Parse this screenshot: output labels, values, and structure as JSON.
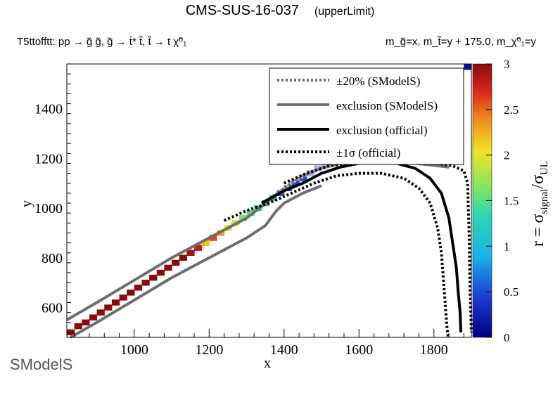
{
  "header": {
    "title": "CMS-SUS-16-037",
    "subtitle": "(upperLimit)",
    "process": "T5ttofftt: pp  → g̃ g̃, g̃ → t̄* t̃, t̃ → t χ̃⁰₁",
    "masses": "m_g̃=x, m_t̃=y + 175.0, m_χ̃⁰₁=y"
  },
  "logo": {
    "text": "SModelS"
  },
  "chart_data": {
    "type": "heatmap",
    "xlabel": "x",
    "ylabel": "y",
    "zlabel": "r = σsignal/σUL",
    "xlim": [
      820,
      1900
    ],
    "ylim": [
      480,
      1580
    ],
    "zlim": [
      0,
      3
    ],
    "x_ticks": [
      1000,
      1200,
      1400,
      1600,
      1800
    ],
    "y_ticks": [
      600,
      800,
      1000,
      1200,
      1400
    ],
    "z_ticks": [
      0,
      0.5,
      1,
      1.5,
      2,
      2.5,
      3
    ],
    "legend": {
      "placement": "top-right",
      "entries": [
        "±20% (SModelS)",
        "exclusion (SModelS)",
        "exclusion (official)",
        "±1σ (official)"
      ]
    },
    "cells": [
      {
        "x": 830,
        "y": 500,
        "r": 3
      },
      {
        "x": 850,
        "y": 525,
        "r": 3
      },
      {
        "x": 870,
        "y": 540,
        "r": 3
      },
      {
        "x": 890,
        "y": 560,
        "r": 3
      },
      {
        "x": 910,
        "y": 580,
        "r": 3
      },
      {
        "x": 930,
        "y": 600,
        "r": 3
      },
      {
        "x": 950,
        "y": 620,
        "r": 3
      },
      {
        "x": 970,
        "y": 640,
        "r": 3
      },
      {
        "x": 990,
        "y": 660,
        "r": 3
      },
      {
        "x": 1010,
        "y": 680,
        "r": 3
      },
      {
        "x": 1030,
        "y": 700,
        "r": 3
      },
      {
        "x": 1050,
        "y": 720,
        "r": 3
      },
      {
        "x": 1070,
        "y": 740,
        "r": 3
      },
      {
        "x": 1090,
        "y": 760,
        "r": 3
      },
      {
        "x": 1110,
        "y": 780,
        "r": 3
      },
      {
        "x": 1130,
        "y": 800,
        "r": 3
      },
      {
        "x": 1150,
        "y": 820,
        "r": 2.9
      },
      {
        "x": 1170,
        "y": 840,
        "r": 2.8
      },
      {
        "x": 1190,
        "y": 860,
        "r": 2.2
      },
      {
        "x": 1210,
        "y": 880,
        "r": 2.6
      },
      {
        "x": 1230,
        "y": 900,
        "r": 2.3
      },
      {
        "x": 1250,
        "y": 920,
        "r": 2.0
      },
      {
        "x": 1270,
        "y": 940,
        "r": 1.9
      },
      {
        "x": 1290,
        "y": 960,
        "r": 1.6
      },
      {
        "x": 1310,
        "y": 980,
        "r": 1.5
      },
      {
        "x": 1330,
        "y": 1000,
        "r": 1.3
      },
      {
        "x": 1350,
        "y": 1020,
        "r": 1.1
      },
      {
        "x": 1370,
        "y": 1040,
        "r": 1.0
      },
      {
        "x": 1390,
        "y": 1060,
        "r": 0.6
      },
      {
        "x": 1410,
        "y": 1080,
        "r": 0.5
      },
      {
        "x": 1430,
        "y": 1100,
        "r": 0.45
      },
      {
        "x": 1450,
        "y": 1120,
        "r": 0.5
      },
      {
        "x": 1470,
        "y": 1140,
        "r": 0.8
      },
      {
        "x": 1490,
        "y": 1160,
        "r": 0.8
      },
      {
        "x": 1510,
        "y": 1180,
        "r": 0.8
      },
      {
        "x": 1530,
        "y": 1200,
        "r": 0.8
      },
      {
        "x": 1550,
        "y": 1220,
        "r": 0.8
      },
      {
        "x": 1570,
        "y": 1240,
        "r": 0.8
      },
      {
        "x": 1590,
        "y": 1260,
        "r": 0.8
      },
      {
        "x": 1610,
        "y": 1280,
        "r": 0.8
      },
      {
        "x": 1630,
        "y": 1300,
        "r": 0.8
      },
      {
        "x": 1650,
        "y": 1320,
        "r": 0.8
      },
      {
        "x": 1670,
        "y": 1340,
        "r": 0.8
      },
      {
        "x": 1690,
        "y": 1360,
        "r": 0.8
      },
      {
        "x": 1710,
        "y": 1380,
        "r": 0.8
      },
      {
        "x": 1730,
        "y": 1400,
        "r": 0.8
      },
      {
        "x": 1750,
        "y": 1420,
        "r": 0.8
      },
      {
        "x": 1770,
        "y": 1440,
        "r": 0.8
      },
      {
        "x": 1790,
        "y": 1460,
        "r": 0.8
      },
      {
        "x": 1810,
        "y": 1480,
        "r": 0.8
      },
      {
        "x": 1830,
        "y": 1500,
        "r": 0.8
      },
      {
        "x": 1850,
        "y": 1520,
        "r": 0.8
      },
      {
        "x": 1870,
        "y": 1540,
        "r": 0.8
      },
      {
        "x": 1890,
        "y": 1570,
        "r": 0.1
      }
    ],
    "exclusion_smodels": [
      [
        820,
        550
      ],
      [
        900,
        620
      ],
      [
        1000,
        710
      ],
      [
        1100,
        800
      ],
      [
        1200,
        880
      ],
      [
        1300,
        960
      ],
      [
        1360,
        1030
      ],
      [
        1400,
        1080
      ],
      [
        1450,
        1130
      ],
      [
        1500,
        1160
      ],
      [
        1550,
        1180
      ],
      [
        1600,
        1185
      ],
      [
        1650,
        1188
      ],
      [
        1700,
        1186
      ],
      [
        1750,
        1180
      ],
      [
        1800,
        1172
      ],
      [
        1840,
        1165
      ]
    ],
    "exclusion_smodels_lower": [
      [
        830,
        480
      ],
      [
        900,
        540
      ],
      [
        1000,
        630
      ],
      [
        1100,
        720
      ],
      [
        1200,
        800
      ],
      [
        1300,
        880
      ],
      [
        1350,
        930
      ],
      [
        1380,
        990
      ],
      [
        1400,
        1020
      ],
      [
        1450,
        1060
      ],
      [
        1500,
        1090
      ]
    ],
    "exclusion_official": [
      [
        1340,
        1020
      ],
      [
        1400,
        1070
      ],
      [
        1450,
        1100
      ],
      [
        1500,
        1140
      ],
      [
        1550,
        1165
      ],
      [
        1600,
        1180
      ],
      [
        1650,
        1182
      ],
      [
        1700,
        1180
      ],
      [
        1750,
        1160
      ],
      [
        1790,
        1120
      ],
      [
        1820,
        1060
      ],
      [
        1840,
        960
      ],
      [
        1850,
        860
      ],
      [
        1860,
        760
      ],
      [
        1865,
        660
      ],
      [
        1870,
        580
      ],
      [
        1872,
        500
      ]
    ],
    "plus_minus_20_smodels": [
      [
        1360,
        1040
      ],
      [
        1420,
        1100
      ],
      [
        1480,
        1150
      ],
      [
        1540,
        1175
      ],
      [
        1600,
        1190
      ],
      [
        1660,
        1198
      ],
      [
        1720,
        1198
      ],
      [
        1780,
        1196
      ],
      [
        1820,
        1190
      ],
      [
        1860,
        1180
      ]
    ],
    "plus_minus_1sigma_official": [
      [
        1240,
        950
      ],
      [
        1300,
        990
      ],
      [
        1360,
        1020
      ],
      [
        1420,
        1060
      ],
      [
        1480,
        1100
      ],
      [
        1540,
        1130
      ],
      [
        1600,
        1140
      ],
      [
        1660,
        1140
      ],
      [
        1720,
        1120
      ],
      [
        1760,
        1080
      ],
      [
        1790,
        1020
      ],
      [
        1810,
        920
      ],
      [
        1820,
        820
      ],
      [
        1825,
        720
      ],
      [
        1830,
        620
      ],
      [
        1835,
        520
      ],
      [
        1838,
        480
      ]
    ],
    "plus_minus_1sigma_official_upper": [
      [
        1400,
        1100
      ],
      [
        1460,
        1140
      ],
      [
        1520,
        1170
      ],
      [
        1580,
        1180
      ],
      [
        1640,
        1188
      ],
      [
        1700,
        1190
      ],
      [
        1760,
        1188
      ],
      [
        1810,
        1180
      ],
      [
        1850,
        1170
      ],
      [
        1880,
        1150
      ],
      [
        1890,
        1100
      ],
      [
        1892,
        1000
      ],
      [
        1894,
        900
      ],
      [
        1896,
        700
      ],
      [
        1898,
        600
      ],
      [
        1900,
        500
      ]
    ]
  }
}
